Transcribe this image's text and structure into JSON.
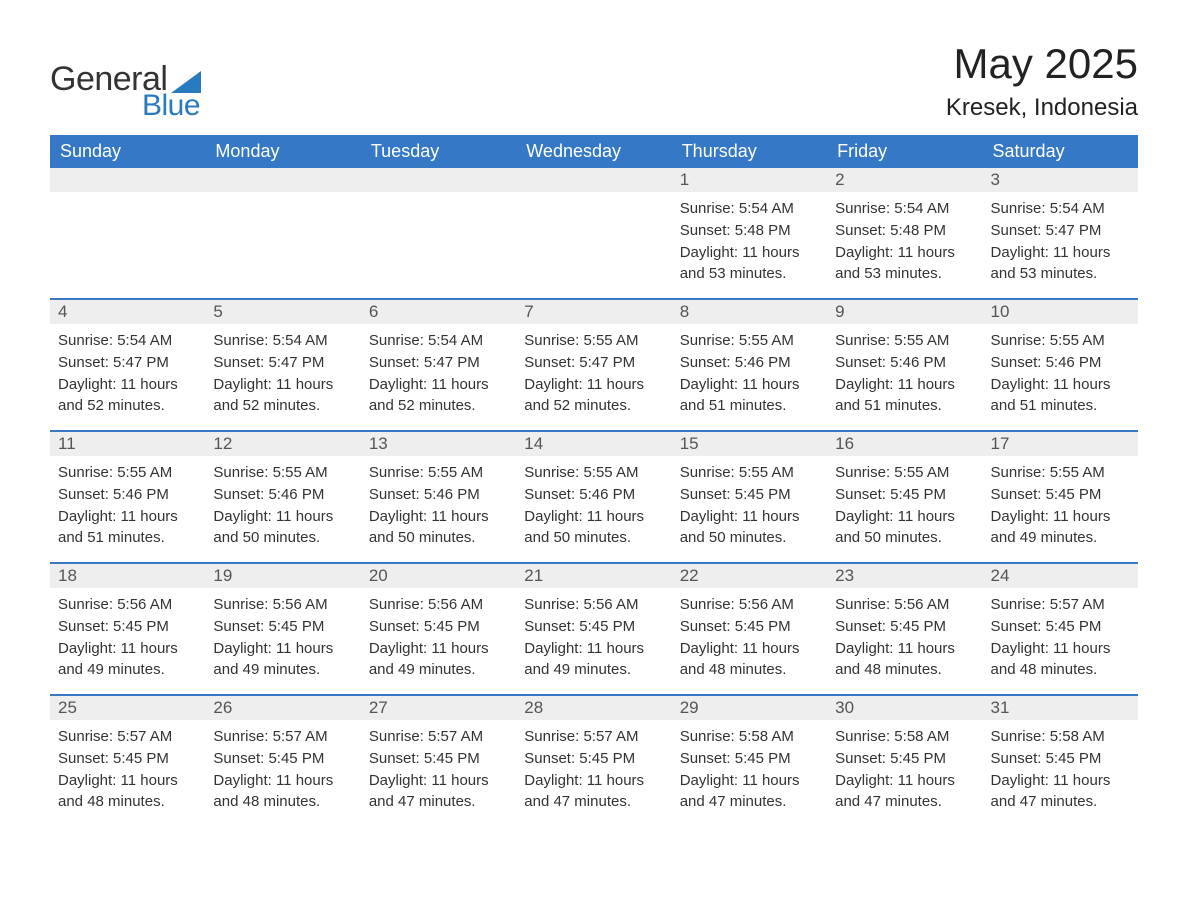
{
  "brand": {
    "word1": "General",
    "word2": "Blue",
    "text_color": "#333333",
    "accent_color": "#2a7ac0"
  },
  "header": {
    "title": "May 2025",
    "location": "Kresek, Indonesia"
  },
  "colors": {
    "header_bg": "#3578c5",
    "header_text": "#ffffff",
    "daynum_bg": "#eeeeee",
    "week_border": "#3578c5",
    "body_text": "#333333",
    "page_bg": "#ffffff"
  },
  "days_of_week": [
    "Sunday",
    "Monday",
    "Tuesday",
    "Wednesday",
    "Thursday",
    "Friday",
    "Saturday"
  ],
  "labels": {
    "sunrise": "Sunrise:",
    "sunset": "Sunset:",
    "daylight": "Daylight:"
  },
  "weeks": [
    [
      {
        "day": null
      },
      {
        "day": null
      },
      {
        "day": null
      },
      {
        "day": null
      },
      {
        "day": "1",
        "sunrise": "5:54 AM",
        "sunset": "5:48 PM",
        "daylight": "11 hours and 53 minutes."
      },
      {
        "day": "2",
        "sunrise": "5:54 AM",
        "sunset": "5:48 PM",
        "daylight": "11 hours and 53 minutes."
      },
      {
        "day": "3",
        "sunrise": "5:54 AM",
        "sunset": "5:47 PM",
        "daylight": "11 hours and 53 minutes."
      }
    ],
    [
      {
        "day": "4",
        "sunrise": "5:54 AM",
        "sunset": "5:47 PM",
        "daylight": "11 hours and 52 minutes."
      },
      {
        "day": "5",
        "sunrise": "5:54 AM",
        "sunset": "5:47 PM",
        "daylight": "11 hours and 52 minutes."
      },
      {
        "day": "6",
        "sunrise": "5:54 AM",
        "sunset": "5:47 PM",
        "daylight": "11 hours and 52 minutes."
      },
      {
        "day": "7",
        "sunrise": "5:55 AM",
        "sunset": "5:47 PM",
        "daylight": "11 hours and 52 minutes."
      },
      {
        "day": "8",
        "sunrise": "5:55 AM",
        "sunset": "5:46 PM",
        "daylight": "11 hours and 51 minutes."
      },
      {
        "day": "9",
        "sunrise": "5:55 AM",
        "sunset": "5:46 PM",
        "daylight": "11 hours and 51 minutes."
      },
      {
        "day": "10",
        "sunrise": "5:55 AM",
        "sunset": "5:46 PM",
        "daylight": "11 hours and 51 minutes."
      }
    ],
    [
      {
        "day": "11",
        "sunrise": "5:55 AM",
        "sunset": "5:46 PM",
        "daylight": "11 hours and 51 minutes."
      },
      {
        "day": "12",
        "sunrise": "5:55 AM",
        "sunset": "5:46 PM",
        "daylight": "11 hours and 50 minutes."
      },
      {
        "day": "13",
        "sunrise": "5:55 AM",
        "sunset": "5:46 PM",
        "daylight": "11 hours and 50 minutes."
      },
      {
        "day": "14",
        "sunrise": "5:55 AM",
        "sunset": "5:46 PM",
        "daylight": "11 hours and 50 minutes."
      },
      {
        "day": "15",
        "sunrise": "5:55 AM",
        "sunset": "5:45 PM",
        "daylight": "11 hours and 50 minutes."
      },
      {
        "day": "16",
        "sunrise": "5:55 AM",
        "sunset": "5:45 PM",
        "daylight": "11 hours and 50 minutes."
      },
      {
        "day": "17",
        "sunrise": "5:55 AM",
        "sunset": "5:45 PM",
        "daylight": "11 hours and 49 minutes."
      }
    ],
    [
      {
        "day": "18",
        "sunrise": "5:56 AM",
        "sunset": "5:45 PM",
        "daylight": "11 hours and 49 minutes."
      },
      {
        "day": "19",
        "sunrise": "5:56 AM",
        "sunset": "5:45 PM",
        "daylight": "11 hours and 49 minutes."
      },
      {
        "day": "20",
        "sunrise": "5:56 AM",
        "sunset": "5:45 PM",
        "daylight": "11 hours and 49 minutes."
      },
      {
        "day": "21",
        "sunrise": "5:56 AM",
        "sunset": "5:45 PM",
        "daylight": "11 hours and 49 minutes."
      },
      {
        "day": "22",
        "sunrise": "5:56 AM",
        "sunset": "5:45 PM",
        "daylight": "11 hours and 48 minutes."
      },
      {
        "day": "23",
        "sunrise": "5:56 AM",
        "sunset": "5:45 PM",
        "daylight": "11 hours and 48 minutes."
      },
      {
        "day": "24",
        "sunrise": "5:57 AM",
        "sunset": "5:45 PM",
        "daylight": "11 hours and 48 minutes."
      }
    ],
    [
      {
        "day": "25",
        "sunrise": "5:57 AM",
        "sunset": "5:45 PM",
        "daylight": "11 hours and 48 minutes."
      },
      {
        "day": "26",
        "sunrise": "5:57 AM",
        "sunset": "5:45 PM",
        "daylight": "11 hours and 48 minutes."
      },
      {
        "day": "27",
        "sunrise": "5:57 AM",
        "sunset": "5:45 PM",
        "daylight": "11 hours and 47 minutes."
      },
      {
        "day": "28",
        "sunrise": "5:57 AM",
        "sunset": "5:45 PM",
        "daylight": "11 hours and 47 minutes."
      },
      {
        "day": "29",
        "sunrise": "5:58 AM",
        "sunset": "5:45 PM",
        "daylight": "11 hours and 47 minutes."
      },
      {
        "day": "30",
        "sunrise": "5:58 AM",
        "sunset": "5:45 PM",
        "daylight": "11 hours and 47 minutes."
      },
      {
        "day": "31",
        "sunrise": "5:58 AM",
        "sunset": "5:45 PM",
        "daylight": "11 hours and 47 minutes."
      }
    ]
  ]
}
